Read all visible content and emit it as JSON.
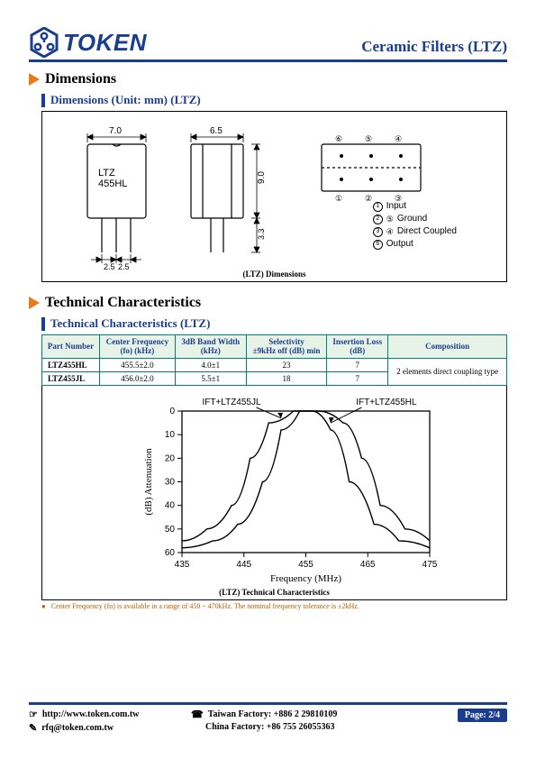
{
  "header": {
    "brand": "TOKEN",
    "doc_title": "Ceramic Filters (LTZ)",
    "accent_color": "#1b3d8f",
    "triangle_color": "#e87a1e"
  },
  "sections": {
    "dimensions": {
      "title": "Dimensions",
      "subtitle": "Dimensions (Unit: mm) (LTZ)",
      "caption": "(LTZ) Dimensions",
      "part_label": "LTZ\n455HL",
      "dims": {
        "width_front": "7.0",
        "width_side": "6.5",
        "height": "9.0",
        "lead_len": "3.3",
        "lead_pitch_a": "2.5",
        "lead_pitch_b": "2.5"
      },
      "pins": [
        {
          "num": "1",
          "label": "Input"
        },
        {
          "num": "2",
          "label": "Ground",
          "suffix": "⑤"
        },
        {
          "num": "3",
          "label": "Direct Coupled",
          "suffix": "④"
        },
        {
          "num": "6",
          "label": "Output"
        }
      ],
      "top_pins": [
        "⑥",
        "⑤",
        "④",
        "①",
        "②",
        "③"
      ]
    },
    "tech": {
      "title": "Technical Characteristics",
      "subtitle": "Technical Characteristics (LTZ)",
      "caption": "(LTZ) Technical Characteristics"
    }
  },
  "table": {
    "columns": [
      "Part Number",
      "Center Frequency\n(fo) (kHz)",
      "3dB Band Width\n(kHz)",
      "Selectivity\n±9kHz off (dB) min",
      "Insertion Loss\n(dB)",
      "Composition"
    ],
    "rows": [
      [
        "LTZ455HL",
        "455.5±2.0",
        "4.0±1",
        "23",
        "7"
      ],
      [
        "LTZ455JL",
        "456.0±2.0",
        "5.5±1",
        "18",
        "7"
      ]
    ],
    "composition": "2 elements direct coupling type",
    "header_bg": "#e8f3e7",
    "border_color": "#008077"
  },
  "chart": {
    "type": "line",
    "title_labels": {
      "left": "IFT+LTZ455JL",
      "right": "IFT+LTZ455HL"
    },
    "xlabel": "Frequency (MHz)",
    "ylabel": "(dB) Attenuation",
    "xlim": [
      435,
      475
    ],
    "xtick_step": 10,
    "ylim": [
      60,
      0
    ],
    "ytick_step": 10,
    "series": [
      {
        "name": "LTZ455JL",
        "color": "#000000",
        "points": [
          [
            435,
            55
          ],
          [
            439,
            50
          ],
          [
            443,
            40
          ],
          [
            446,
            20
          ],
          [
            449,
            5
          ],
          [
            453,
            0
          ],
          [
            457,
            0
          ],
          [
            461,
            5
          ],
          [
            464,
            20
          ],
          [
            467,
            40
          ],
          [
            471,
            50
          ],
          [
            475,
            55
          ]
        ]
      },
      {
        "name": "LTZ455HL",
        "color": "#000000",
        "points": [
          [
            435,
            58
          ],
          [
            440,
            55
          ],
          [
            444,
            48
          ],
          [
            448,
            30
          ],
          [
            451,
            8
          ],
          [
            454,
            0
          ],
          [
            456,
            0
          ],
          [
            459,
            8
          ],
          [
            462,
            30
          ],
          [
            466,
            48
          ],
          [
            470,
            55
          ],
          [
            475,
            58
          ]
        ]
      }
    ],
    "plot_bg": "#ffffff",
    "axis_color": "#000000",
    "label_fontsize": 11
  },
  "footnote": "Center Frequency (fo) is available in a range of 450 ~ 470kHz. The nominal frequency tolerance is ±2kHz.",
  "footer": {
    "url": "http://www.token.com.tw",
    "email": "rfq@token.com.tw",
    "taiwan": "Taiwan Factory: +886 2 29810109",
    "china": "China Factory: +86 755 26055363",
    "page": "Page: 2/4"
  }
}
